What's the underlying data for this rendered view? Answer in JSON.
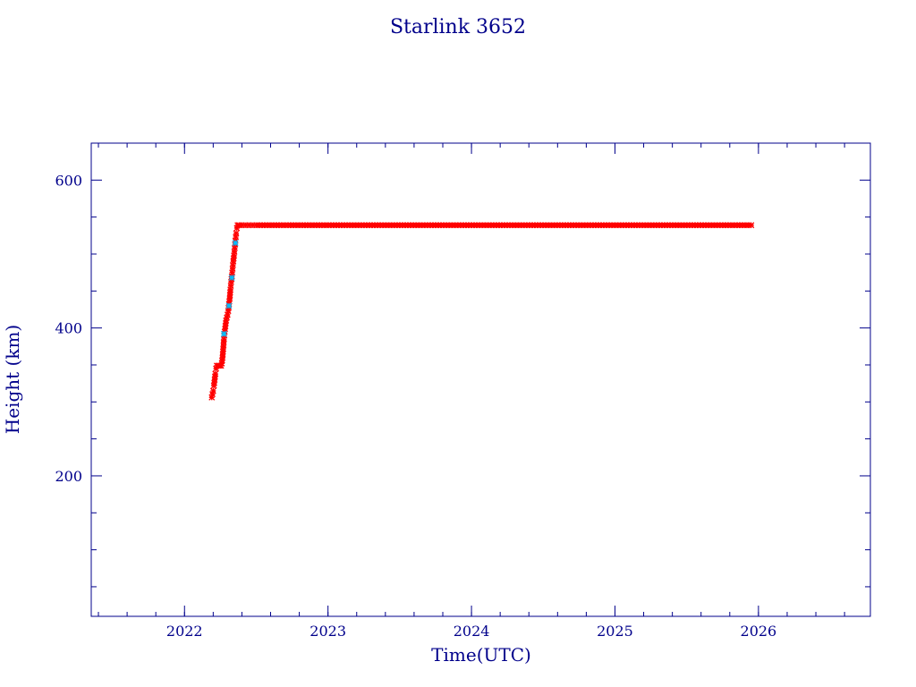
{
  "chart_data": {
    "type": "scatter",
    "title": "Starlink 3652",
    "xlabel": "Time(UTC)",
    "ylabel": "Height (km)",
    "xlim": [
      2021.35,
      2026.78
    ],
    "ylim": [
      10,
      650
    ],
    "x_ticks": [
      2022,
      2023,
      2024,
      2025,
      2026
    ],
    "x_tick_labels": [
      "2022",
      "2023",
      "2024",
      "2025",
      "2026"
    ],
    "x_minor_step": 0.2,
    "y_ticks": [
      200,
      400,
      600
    ],
    "y_tick_labels": [
      "200",
      "400",
      "600"
    ],
    "y_minor_step": 50,
    "grid": false,
    "colors": {
      "axis": "#00008b",
      "marker": "#ff0000",
      "accent_marker": "#00bfff"
    },
    "series": [
      {
        "marker_color": "#ff0000",
        "points": [
          [
            2022.19,
            306
          ],
          [
            2022.2,
            315
          ],
          [
            2022.205,
            322
          ],
          [
            2022.21,
            330
          ],
          [
            2022.215,
            338
          ],
          [
            2022.22,
            345
          ],
          [
            2022.225,
            349
          ],
          [
            2022.235,
            349
          ],
          [
            2022.245,
            349
          ],
          [
            2022.255,
            349
          ],
          [
            2022.26,
            352
          ],
          [
            2022.265,
            360
          ],
          [
            2022.27,
            372
          ],
          [
            2022.275,
            385
          ],
          [
            2022.28,
            395
          ],
          [
            2022.29,
            410
          ],
          [
            2022.3,
            418
          ],
          [
            2022.305,
            423
          ],
          [
            2022.31,
            432
          ],
          [
            2022.315,
            440
          ],
          [
            2022.32,
            452
          ],
          [
            2022.325,
            462
          ],
          [
            2022.33,
            470
          ],
          [
            2022.335,
            480
          ],
          [
            2022.34,
            490
          ],
          [
            2022.345,
            498
          ],
          [
            2022.35,
            508
          ],
          [
            2022.355,
            518
          ],
          [
            2022.36,
            528
          ],
          [
            2022.365,
            535
          ],
          [
            2022.37,
            539
          ],
          [
            2022.38,
            539
          ],
          [
            2022.4,
            539
          ],
          [
            2022.45,
            539
          ],
          [
            2022.5,
            539
          ],
          [
            2022.6,
            539
          ],
          [
            2022.7,
            539
          ],
          [
            2022.8,
            539
          ],
          [
            2022.9,
            539
          ],
          [
            2023.0,
            539
          ],
          [
            2023.25,
            539
          ],
          [
            2023.5,
            539
          ],
          [
            2023.75,
            539
          ],
          [
            2024.0,
            539
          ],
          [
            2024.25,
            539
          ],
          [
            2024.5,
            539
          ],
          [
            2024.75,
            539
          ],
          [
            2025.0,
            539
          ],
          [
            2025.25,
            539
          ],
          [
            2025.5,
            539
          ],
          [
            2025.75,
            539
          ],
          [
            2025.95,
            539
          ]
        ]
      },
      {
        "marker_color": "#00bfff",
        "points": [
          [
            2022.275,
            392
          ],
          [
            2022.31,
            430
          ],
          [
            2022.33,
            468
          ],
          [
            2022.355,
            515
          ]
        ]
      }
    ]
  }
}
